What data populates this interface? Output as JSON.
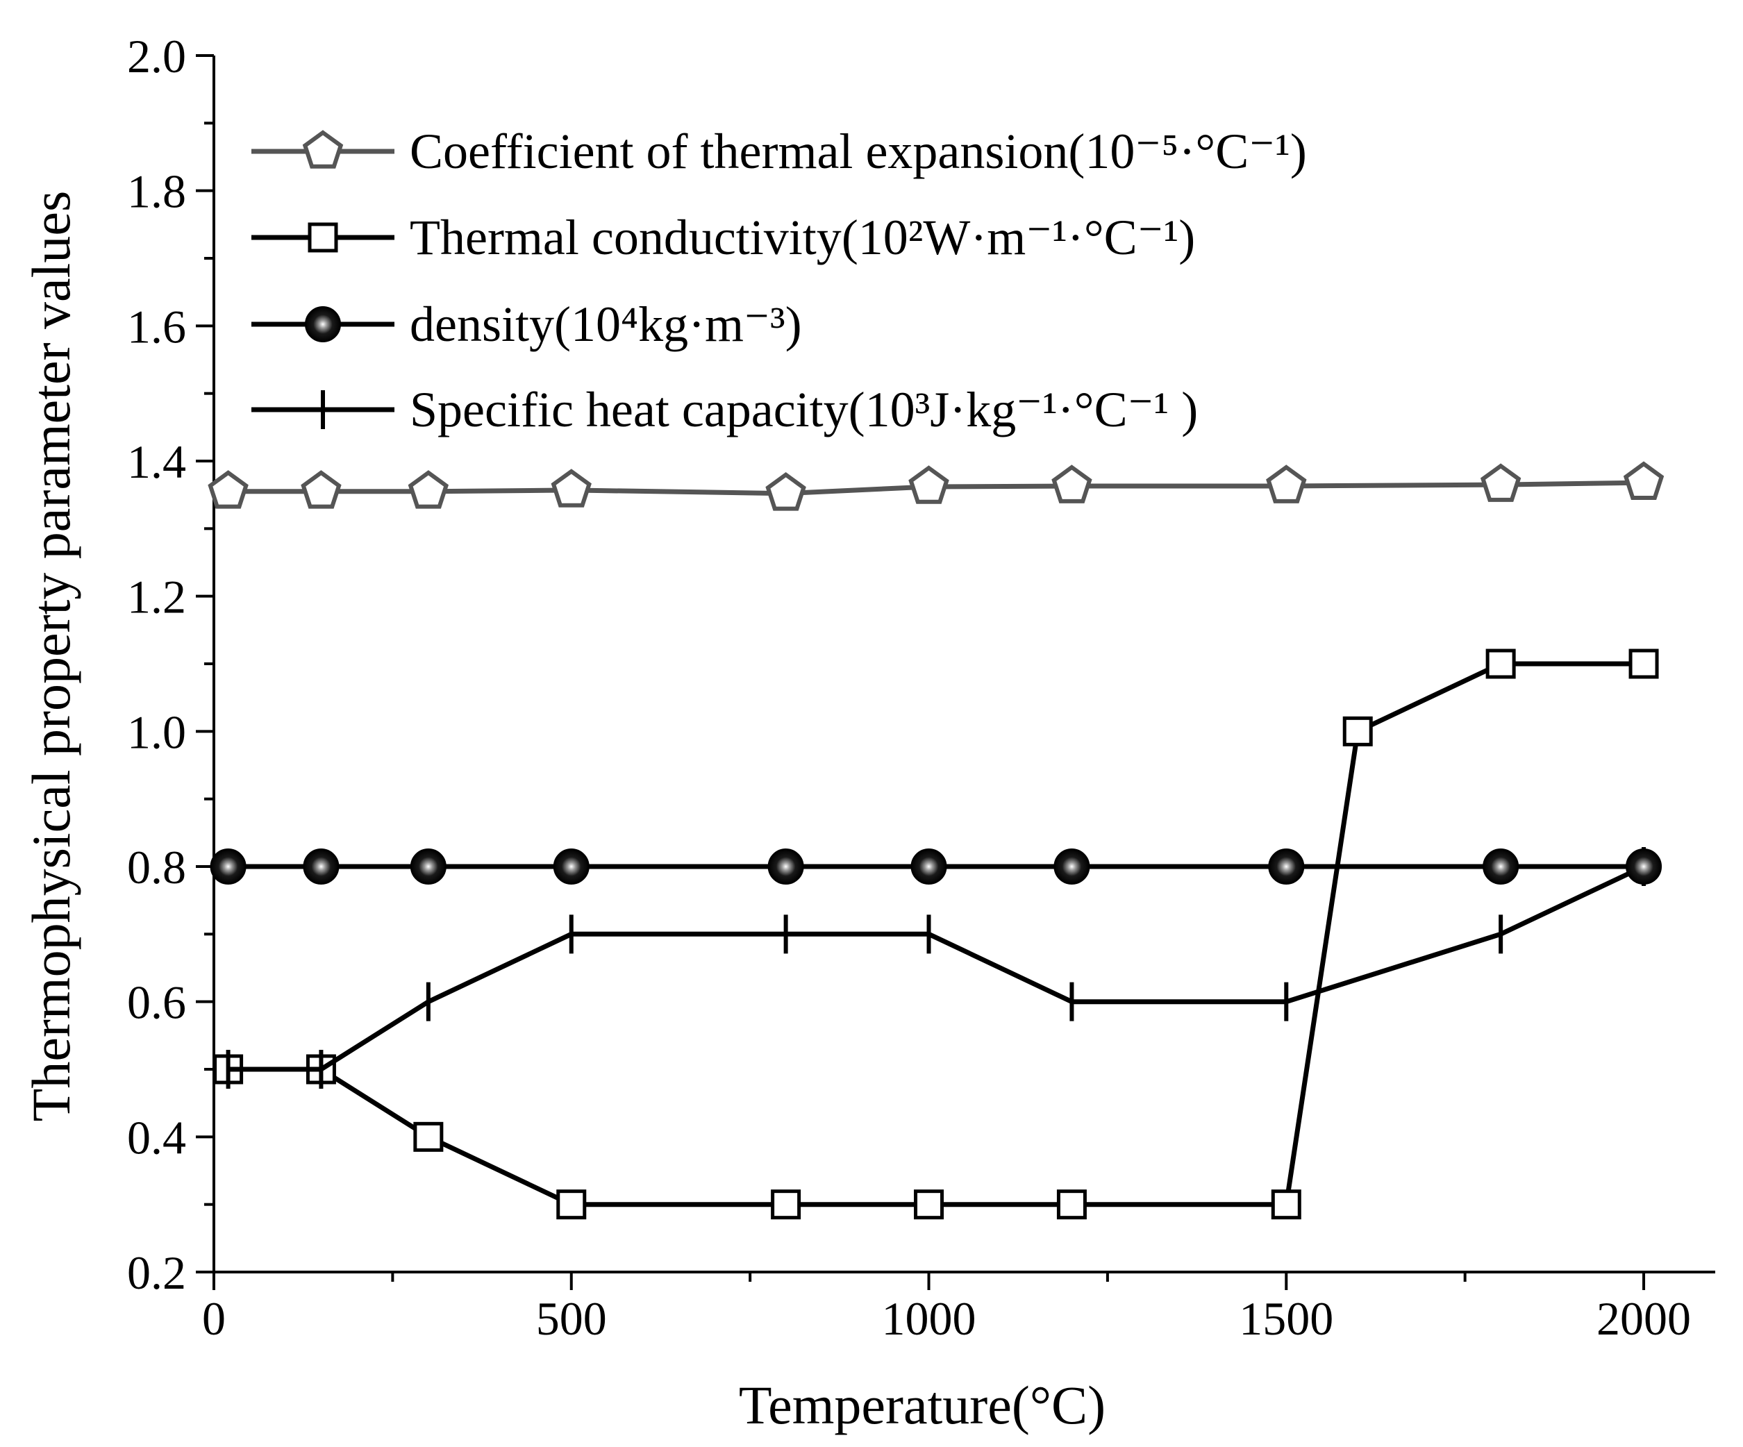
{
  "chart_data": {
    "type": "line",
    "xlabel": "Temperature(°C)",
    "ylabel": "Thermophysical property parameter values",
    "xlim": [
      0,
      2100
    ],
    "ylim": [
      0.2,
      2.0
    ],
    "xticks": [
      0,
      500,
      1000,
      1500,
      2000
    ],
    "xtick_labels": [
      "0",
      "500",
      "1000",
      "1500",
      "2000"
    ],
    "yticks": [
      0.2,
      0.4,
      0.6,
      0.8,
      1.0,
      1.2,
      1.4,
      1.6,
      1.8,
      2.0
    ],
    "ytick_labels": [
      "0.2",
      "0.4",
      "0.6",
      "0.8",
      "1.0",
      "1.2",
      "1.4",
      "1.6",
      "1.8",
      "2.0"
    ],
    "legend_position": "top-left",
    "series": [
      {
        "name": "Coefficient of thermal expansion",
        "unit": "(10⁻⁵·°C⁻¹)",
        "marker": "pentagon-open",
        "color": "#555555",
        "x": [
          20,
          150,
          300,
          500,
          800,
          1000,
          1200,
          1500,
          1800,
          2000
        ],
        "y": [
          1.355,
          1.355,
          1.355,
          1.357,
          1.352,
          1.362,
          1.363,
          1.363,
          1.365,
          1.368
        ]
      },
      {
        "name": "Thermal conductivity",
        "unit": "(10²W·m⁻¹·°C⁻¹)",
        "marker": "square-open",
        "color": "#000000",
        "x": [
          20,
          150,
          300,
          500,
          800,
          1000,
          1200,
          1500,
          1600,
          1800,
          2000
        ],
        "y": [
          0.5,
          0.5,
          0.4,
          0.3,
          0.3,
          0.3,
          0.3,
          0.3,
          1.0,
          1.1,
          1.1
        ]
      },
      {
        "name": "density",
        "unit": "(10⁴kg·m⁻³)",
        "marker": "sphere-filled",
        "color": "#000000",
        "x": [
          20,
          150,
          300,
          500,
          800,
          1000,
          1200,
          1500,
          1800,
          2000
        ],
        "y": [
          0.8,
          0.8,
          0.8,
          0.8,
          0.8,
          0.8,
          0.8,
          0.8,
          0.8,
          0.8
        ]
      },
      {
        "name": "Specific heat capacity",
        "unit": "(10³J·kg⁻¹·°C⁻¹ )",
        "marker": "plus",
        "color": "#000000",
        "x": [
          20,
          150,
          300,
          500,
          800,
          1000,
          1200,
          1500,
          1800,
          2000
        ],
        "y": [
          0.5,
          0.5,
          0.6,
          0.7,
          0.7,
          0.7,
          0.6,
          0.6,
          0.7,
          0.8
        ]
      }
    ]
  }
}
